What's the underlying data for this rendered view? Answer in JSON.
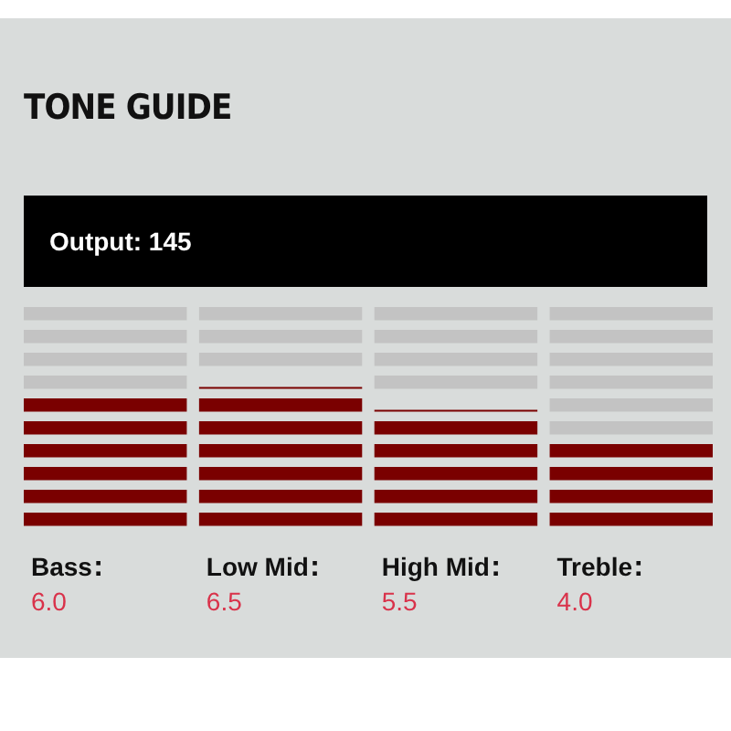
{
  "chart_data": {
    "type": "bar",
    "title": "TONE GUIDE",
    "annotations": [
      "Output:  145"
    ],
    "categories": [
      "Bass",
      "Low Mid",
      "High Mid",
      "Treble"
    ],
    "values": [
      6.0,
      6.5,
      5.5,
      4.0
    ],
    "value_labels": [
      "6.0",
      "6.5",
      "5.5",
      "4.0"
    ],
    "color": "#7a0000",
    "ylim": [
      0,
      10
    ]
  }
}
